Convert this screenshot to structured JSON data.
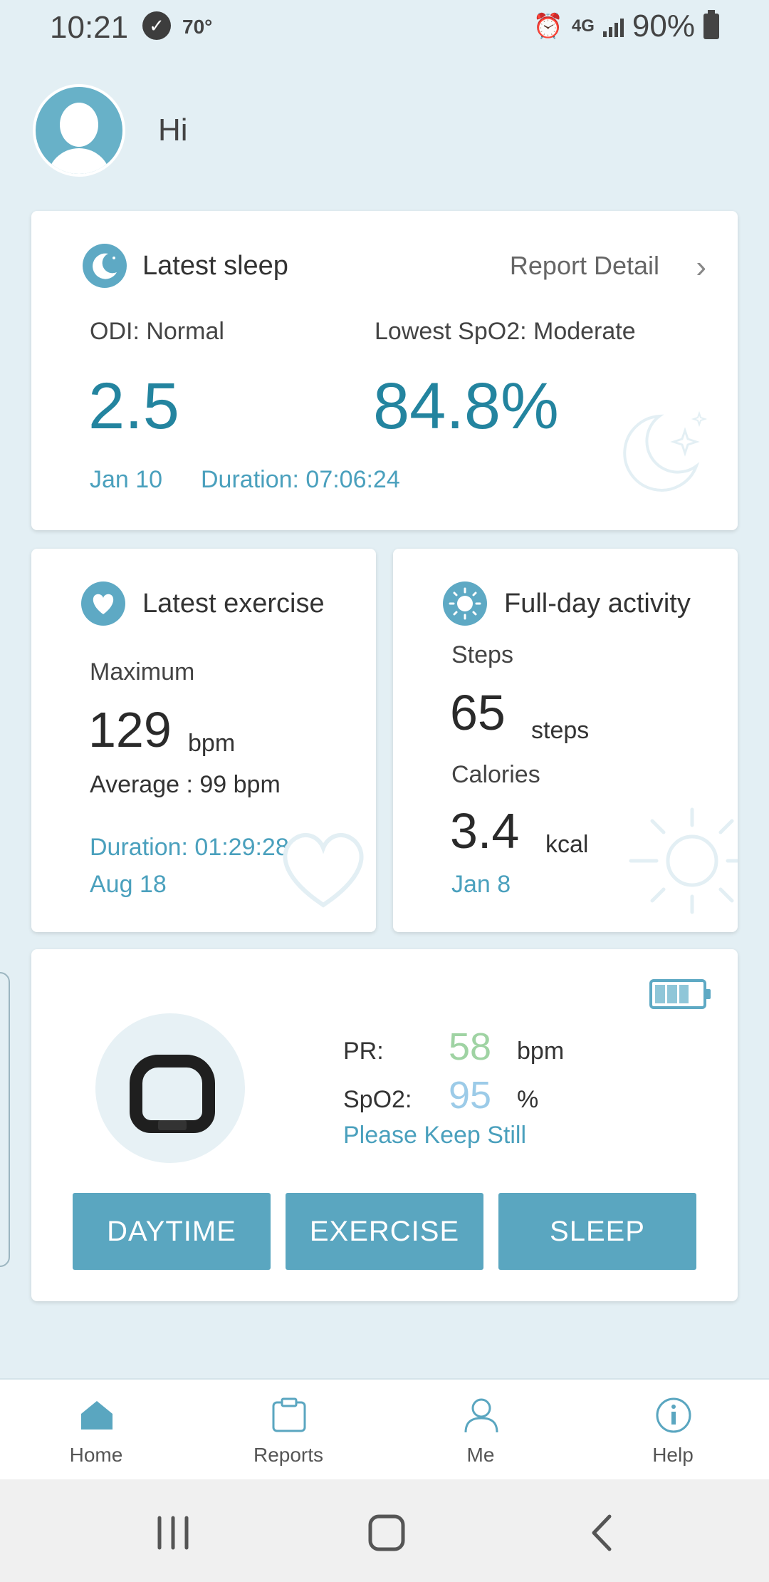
{
  "status_bar": {
    "time": "10:21",
    "temperature": "70°",
    "network": "4G",
    "battery": "90%"
  },
  "greeting": "Hi",
  "sleep_card": {
    "title": "Latest sleep",
    "report_link": "Report Detail",
    "odi_label": "ODI: Normal",
    "odi_value": "2.5",
    "spo2_label": "Lowest SpO2: Moderate",
    "spo2_value": "84.8%",
    "date": "Jan 10",
    "duration": "Duration: 07:06:24"
  },
  "exercise_card": {
    "title": "Latest exercise",
    "max_label": "Maximum",
    "max_value": "129",
    "max_unit": "bpm",
    "average": "Average : 99 bpm",
    "duration": "Duration: 01:29:28",
    "date": "Aug 18"
  },
  "activity_card": {
    "title": "Full-day activity",
    "steps_label": "Steps",
    "steps_value": "65",
    "steps_unit": "steps",
    "calories_label": "Calories",
    "calories_value": "3.4",
    "calories_unit": "kcal",
    "date": "Jan 8"
  },
  "device_card": {
    "pr_label": "PR:",
    "pr_value": "58",
    "pr_unit": "bpm",
    "spo2_label": "SpO2:",
    "spo2_value": "95",
    "spo2_unit": "%",
    "message": "Please Keep Still",
    "battery_level": 0.75,
    "buttons": [
      "DAYTIME",
      "EXERCISE",
      "SLEEP"
    ]
  },
  "bottom_nav": [
    {
      "label": "Home",
      "icon": "home-icon",
      "active": true
    },
    {
      "label": "Reports",
      "icon": "clipboard-icon",
      "active": false
    },
    {
      "label": "Me",
      "icon": "person-icon",
      "active": false
    },
    {
      "label": "Help",
      "icon": "info-icon",
      "active": false
    }
  ],
  "colors": {
    "accent": "#5aa6c0",
    "value_blue": "#23849f",
    "pr_green": "#9fd3a3",
    "spo2_blue": "#9ccbe8",
    "background": "#e3eff4"
  }
}
